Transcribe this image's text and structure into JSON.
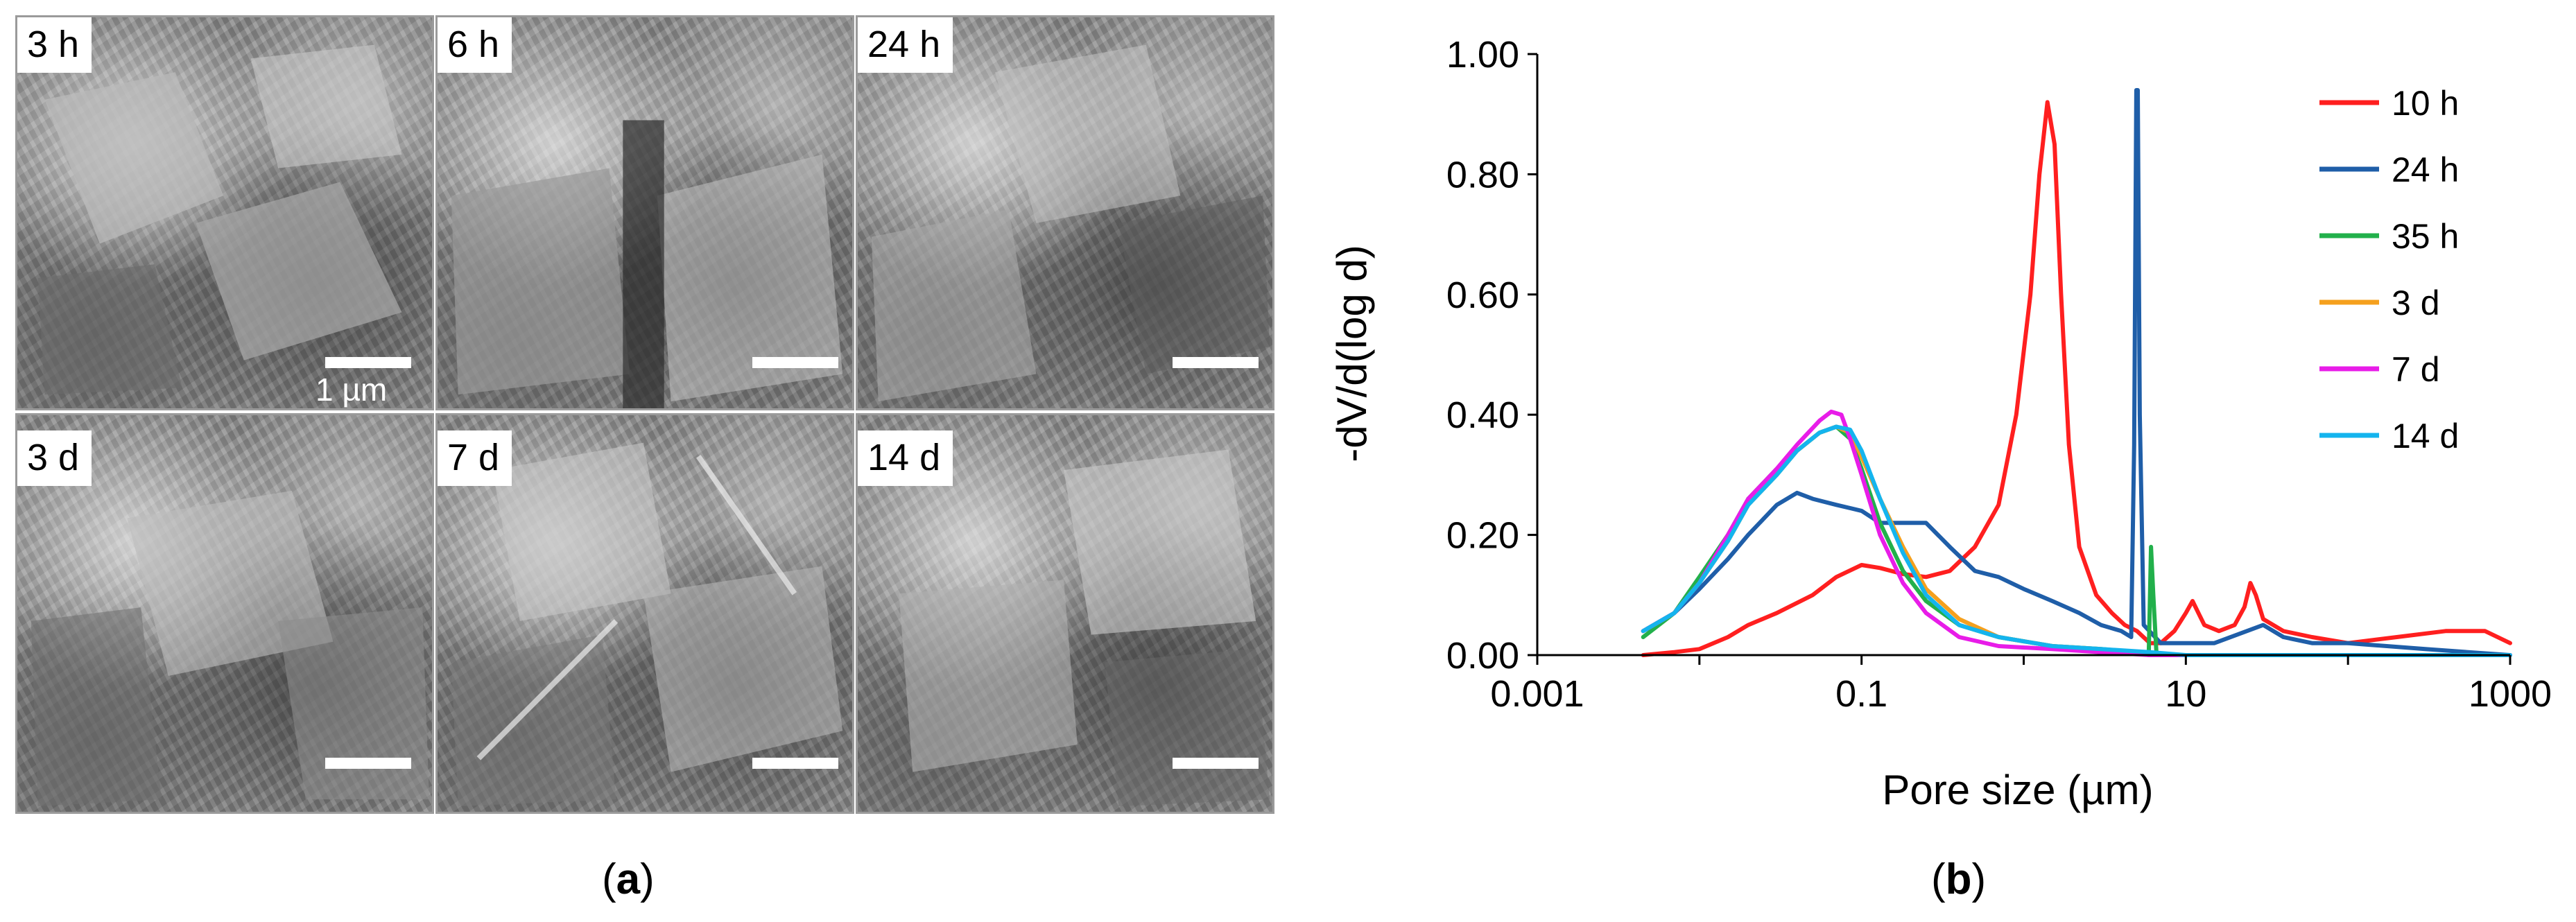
{
  "panel_a": {
    "caption": {
      "open": "(",
      "letter": "a",
      "close": ")"
    },
    "micrographs": [
      {
        "label": "3 h",
        "scale_text": "1 µm"
      },
      {
        "label": "6 h",
        "scale_text": ""
      },
      {
        "label": "24 h",
        "scale_text": ""
      },
      {
        "label": "3 d",
        "scale_text": ""
      },
      {
        "label": "7 d",
        "scale_text": ""
      },
      {
        "label": "14 d",
        "scale_text": ""
      }
    ]
  },
  "panel_b": {
    "caption": {
      "open": "(",
      "letter": "b",
      "close": ")"
    }
  },
  "chart_data": {
    "type": "line",
    "title": "",
    "xlabel": "Pore size (µm)",
    "ylabel": "-dV/d(log d)",
    "x_scale": "log",
    "xlim": [
      0.001,
      1000
    ],
    "ylim": [
      0,
      1.0
    ],
    "x_ticks": [
      0.001,
      0.1,
      10,
      1000
    ],
    "x_tick_labels": [
      "0.001",
      "0.1",
      "10",
      "1000"
    ],
    "y_ticks": [
      0,
      0.2,
      0.4,
      0.6,
      0.8,
      1.0
    ],
    "y_tick_labels": [
      "0.00",
      "0.20",
      "0.40",
      "0.60",
      "0.80",
      "1.00"
    ],
    "grid": false,
    "legend_position": "top-right",
    "series": [
      {
        "name": "10 h",
        "color": "#ff1f1f",
        "points": [
          [
            0.0045,
            0.0
          ],
          [
            0.007,
            0.005
          ],
          [
            0.01,
            0.01
          ],
          [
            0.015,
            0.03
          ],
          [
            0.02,
            0.05
          ],
          [
            0.03,
            0.07
          ],
          [
            0.05,
            0.1
          ],
          [
            0.07,
            0.13
          ],
          [
            0.1,
            0.15
          ],
          [
            0.13,
            0.145
          ],
          [
            0.18,
            0.135
          ],
          [
            0.25,
            0.13
          ],
          [
            0.35,
            0.14
          ],
          [
            0.5,
            0.18
          ],
          [
            0.7,
            0.25
          ],
          [
            0.9,
            0.4
          ],
          [
            1.1,
            0.6
          ],
          [
            1.25,
            0.8
          ],
          [
            1.4,
            0.92
          ],
          [
            1.55,
            0.85
          ],
          [
            1.7,
            0.6
          ],
          [
            1.9,
            0.35
          ],
          [
            2.2,
            0.18
          ],
          [
            2.8,
            0.1
          ],
          [
            3.5,
            0.07
          ],
          [
            4.2,
            0.05
          ],
          [
            5.0,
            0.04
          ],
          [
            6.0,
            0.02
          ],
          [
            7.0,
            0.02
          ],
          [
            8.5,
            0.04
          ],
          [
            10,
            0.07
          ],
          [
            11,
            0.09
          ],
          [
            13,
            0.05
          ],
          [
            16,
            0.04
          ],
          [
            20,
            0.05
          ],
          [
            23,
            0.08
          ],
          [
            25,
            0.12
          ],
          [
            27,
            0.1
          ],
          [
            30,
            0.06
          ],
          [
            40,
            0.04
          ],
          [
            60,
            0.03
          ],
          [
            100,
            0.02
          ],
          [
            200,
            0.03
          ],
          [
            400,
            0.04
          ],
          [
            700,
            0.04
          ],
          [
            1000,
            0.02
          ]
        ]
      },
      {
        "name": "24 h",
        "color": "#1f5ea8",
        "points": [
          [
            0.0045,
            0.04
          ],
          [
            0.007,
            0.07
          ],
          [
            0.01,
            0.11
          ],
          [
            0.015,
            0.16
          ],
          [
            0.02,
            0.2
          ],
          [
            0.03,
            0.25
          ],
          [
            0.04,
            0.27
          ],
          [
            0.05,
            0.26
          ],
          [
            0.07,
            0.25
          ],
          [
            0.1,
            0.24
          ],
          [
            0.13,
            0.22
          ],
          [
            0.18,
            0.22
          ],
          [
            0.25,
            0.22
          ],
          [
            0.35,
            0.18
          ],
          [
            0.5,
            0.14
          ],
          [
            0.7,
            0.13
          ],
          [
            1.0,
            0.11
          ],
          [
            1.5,
            0.09
          ],
          [
            2.2,
            0.07
          ],
          [
            3.0,
            0.05
          ],
          [
            4.0,
            0.04
          ],
          [
            4.6,
            0.03
          ],
          [
            4.8,
            0.35
          ],
          [
            4.95,
            0.94
          ],
          [
            5.05,
            0.94
          ],
          [
            5.2,
            0.4
          ],
          [
            5.5,
            0.05
          ],
          [
            7.0,
            0.02
          ],
          [
            10,
            0.02
          ],
          [
            15,
            0.02
          ],
          [
            30,
            0.05
          ],
          [
            40,
            0.03
          ],
          [
            60,
            0.02
          ],
          [
            100,
            0.02
          ],
          [
            300,
            0.01
          ],
          [
            1000,
            0.0
          ]
        ]
      },
      {
        "name": "35 h",
        "color": "#22b04b",
        "points": [
          [
            0.0045,
            0.03
          ],
          [
            0.007,
            0.07
          ],
          [
            0.01,
            0.13
          ],
          [
            0.015,
            0.2
          ],
          [
            0.02,
            0.26
          ],
          [
            0.03,
            0.31
          ],
          [
            0.04,
            0.34
          ],
          [
            0.055,
            0.37
          ],
          [
            0.07,
            0.38
          ],
          [
            0.085,
            0.36
          ],
          [
            0.1,
            0.31
          ],
          [
            0.13,
            0.22
          ],
          [
            0.18,
            0.14
          ],
          [
            0.25,
            0.09
          ],
          [
            0.4,
            0.05
          ],
          [
            0.7,
            0.03
          ],
          [
            1.5,
            0.015
          ],
          [
            3,
            0.01
          ],
          [
            5,
            0.005
          ],
          [
            5.9,
            0.0
          ],
          [
            6.1,
            0.18
          ],
          [
            6.3,
            0.1
          ],
          [
            6.6,
            0.0
          ],
          [
            10,
            0.0
          ],
          [
            100,
            0.0
          ],
          [
            1000,
            0.0
          ]
        ]
      },
      {
        "name": "3 d",
        "color": "#f5a01e",
        "points": [
          [
            0.0045,
            0.04
          ],
          [
            0.007,
            0.07
          ],
          [
            0.01,
            0.12
          ],
          [
            0.015,
            0.19
          ],
          [
            0.02,
            0.25
          ],
          [
            0.03,
            0.3
          ],
          [
            0.04,
            0.34
          ],
          [
            0.055,
            0.37
          ],
          [
            0.07,
            0.38
          ],
          [
            0.085,
            0.37
          ],
          [
            0.1,
            0.33
          ],
          [
            0.13,
            0.26
          ],
          [
            0.18,
            0.18
          ],
          [
            0.25,
            0.11
          ],
          [
            0.4,
            0.06
          ],
          [
            0.7,
            0.03
          ],
          [
            1.5,
            0.015
          ],
          [
            3,
            0.01
          ],
          [
            6,
            0.0
          ],
          [
            10,
            0.0
          ],
          [
            100,
            0.0
          ],
          [
            1000,
            0.0
          ]
        ]
      },
      {
        "name": "7 d",
        "color": "#e81ce8",
        "points": [
          [
            0.0045,
            0.04
          ],
          [
            0.007,
            0.07
          ],
          [
            0.01,
            0.12
          ],
          [
            0.015,
            0.2
          ],
          [
            0.02,
            0.26
          ],
          [
            0.03,
            0.31
          ],
          [
            0.04,
            0.35
          ],
          [
            0.055,
            0.39
          ],
          [
            0.065,
            0.405
          ],
          [
            0.075,
            0.4
          ],
          [
            0.085,
            0.36
          ],
          [
            0.1,
            0.3
          ],
          [
            0.13,
            0.2
          ],
          [
            0.18,
            0.12
          ],
          [
            0.25,
            0.07
          ],
          [
            0.4,
            0.03
          ],
          [
            0.7,
            0.015
          ],
          [
            1.5,
            0.01
          ],
          [
            3,
            0.005
          ],
          [
            6,
            0.0
          ],
          [
            10,
            0.0
          ],
          [
            100,
            0.0
          ],
          [
            1000,
            0.0
          ]
        ]
      },
      {
        "name": "14 d",
        "color": "#14b4ee",
        "points": [
          [
            0.0045,
            0.04
          ],
          [
            0.007,
            0.07
          ],
          [
            0.01,
            0.12
          ],
          [
            0.015,
            0.19
          ],
          [
            0.02,
            0.25
          ],
          [
            0.03,
            0.3
          ],
          [
            0.04,
            0.34
          ],
          [
            0.055,
            0.37
          ],
          [
            0.07,
            0.38
          ],
          [
            0.085,
            0.375
          ],
          [
            0.1,
            0.34
          ],
          [
            0.13,
            0.26
          ],
          [
            0.18,
            0.17
          ],
          [
            0.25,
            0.1
          ],
          [
            0.4,
            0.05
          ],
          [
            0.7,
            0.03
          ],
          [
            1.5,
            0.015
          ],
          [
            3,
            0.01
          ],
          [
            6,
            0.005
          ],
          [
            10,
            0.0
          ],
          [
            100,
            0.0
          ],
          [
            1000,
            0.0
          ]
        ]
      }
    ]
  }
}
